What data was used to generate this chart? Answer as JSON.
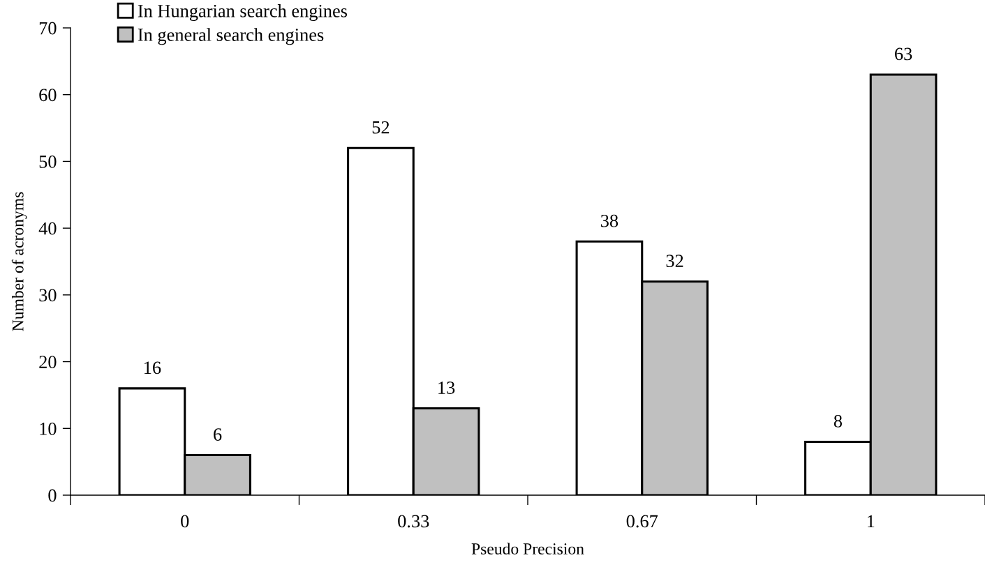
{
  "chart_data": {
    "type": "bar",
    "xlabel": "Pseudo Precision",
    "ylabel": "Number of acronyms",
    "categories": [
      "0",
      "0.33",
      "0.67",
      "1"
    ],
    "series": [
      {
        "name": "In Hungarian search engines",
        "color": "#ffffff",
        "values": [
          16,
          52,
          38,
          8
        ]
      },
      {
        "name": "In general search engines",
        "color": "#c0c0c0",
        "values": [
          6,
          13,
          32,
          63
        ]
      }
    ],
    "ylim": [
      0,
      70
    ],
    "yticks": [
      0,
      10,
      20,
      30,
      40,
      50,
      60,
      70
    ],
    "data_labels": true,
    "grid": false,
    "legend": "top left"
  }
}
